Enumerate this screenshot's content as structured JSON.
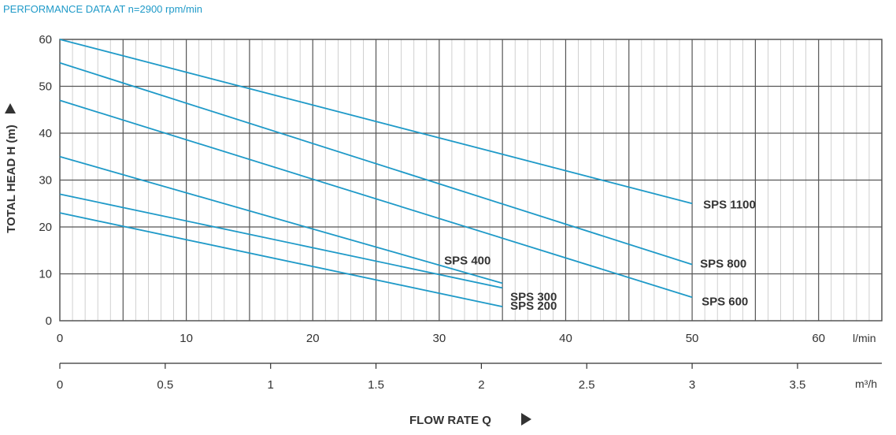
{
  "header": {
    "title": "PERFORMANCE DATA AT n=2900 rpm/min"
  },
  "colors": {
    "series": "#1f9ac8",
    "title": "#1f9ac8",
    "grid_major": "#555555",
    "grid_minor": "#c4c4c4",
    "text": "#333333"
  },
  "chart_data": {
    "type": "line",
    "title": "PERFORMANCE DATA AT n=2900 rpm/min",
    "xlabel": "FLOW RATE Q",
    "ylabel": "TOTAL HEAD H (m)",
    "x_unit": "l/min",
    "x2_unit": "m³/h",
    "xlim": [
      0,
      65
    ],
    "ylim": [
      0,
      60
    ],
    "x_ticks": [
      "0",
      "10",
      "20",
      "30",
      "40",
      "50",
      "60"
    ],
    "x2_ticks": [
      "0",
      "0.5",
      "1",
      "1.5",
      "2",
      "2.5",
      "3",
      "3.5"
    ],
    "y_ticks": [
      "0",
      "10",
      "20",
      "30",
      "40",
      "50",
      "60"
    ],
    "grid": true,
    "series": [
      {
        "name": "SPS 1100",
        "x": [
          0,
          50
        ],
        "y": [
          60,
          25
        ]
      },
      {
        "name": "SPS 800",
        "x": [
          0,
          50
        ],
        "y": [
          55,
          12
        ]
      },
      {
        "name": "SPS 600",
        "x": [
          0,
          50
        ],
        "y": [
          47,
          5
        ]
      },
      {
        "name": "SPS 400",
        "x": [
          0,
          35
        ],
        "y": [
          35,
          8
        ]
      },
      {
        "name": "SPS 300",
        "x": [
          0,
          35
        ],
        "y": [
          27,
          7
        ]
      },
      {
        "name": "SPS 200",
        "x": [
          0,
          35
        ],
        "y": [
          23,
          3
        ]
      }
    ]
  }
}
